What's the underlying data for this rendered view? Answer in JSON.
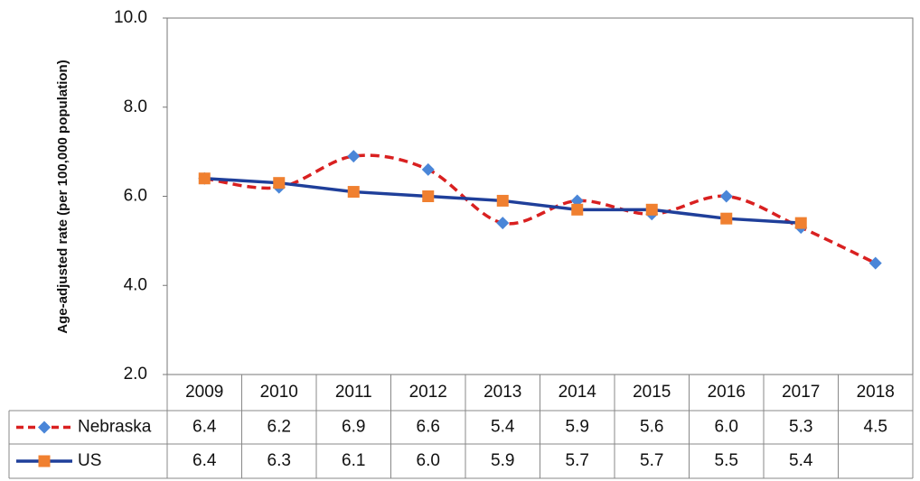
{
  "chart_data": {
    "type": "line",
    "y_label": "Age-adjusted rate (per 100,000 population)",
    "categories": [
      "2009",
      "2010",
      "2011",
      "2012",
      "2013",
      "2014",
      "2015",
      "2016",
      "2017",
      "2018"
    ],
    "series": [
      {
        "name": "Nebraska",
        "color": "#d92020",
        "marker_color": "#4a86d8",
        "dashed": true,
        "smooth": true,
        "values": [
          6.4,
          6.2,
          6.9,
          6.6,
          5.4,
          5.9,
          5.6,
          6.0,
          5.3,
          4.5
        ],
        "value_labels": [
          "6.4",
          "6.2",
          "6.9",
          "6.6",
          "5.4",
          "5.9",
          "5.6",
          "6.0",
          "5.3",
          "4.5"
        ]
      },
      {
        "name": "US",
        "color": "#1f3f9a",
        "marker_color": "#f08030",
        "dashed": false,
        "smooth": false,
        "values": [
          6.4,
          6.3,
          6.1,
          6.0,
          5.9,
          5.7,
          5.7,
          5.5,
          5.4,
          null
        ],
        "value_labels": [
          "6.4",
          "6.3",
          "6.1",
          "6.0",
          "5.9",
          "5.7",
          "5.7",
          "5.5",
          "5.4",
          null
        ]
      }
    ],
    "ylim": [
      2,
      10
    ],
    "yticks": [
      {
        "value": 2,
        "label": "2.0"
      },
      {
        "value": 4,
        "label": "4.0"
      },
      {
        "value": 6,
        "label": "6.0"
      },
      {
        "value": 8,
        "label": "8.0"
      },
      {
        "value": 10,
        "label": "10.0"
      }
    ],
    "grid": false
  }
}
